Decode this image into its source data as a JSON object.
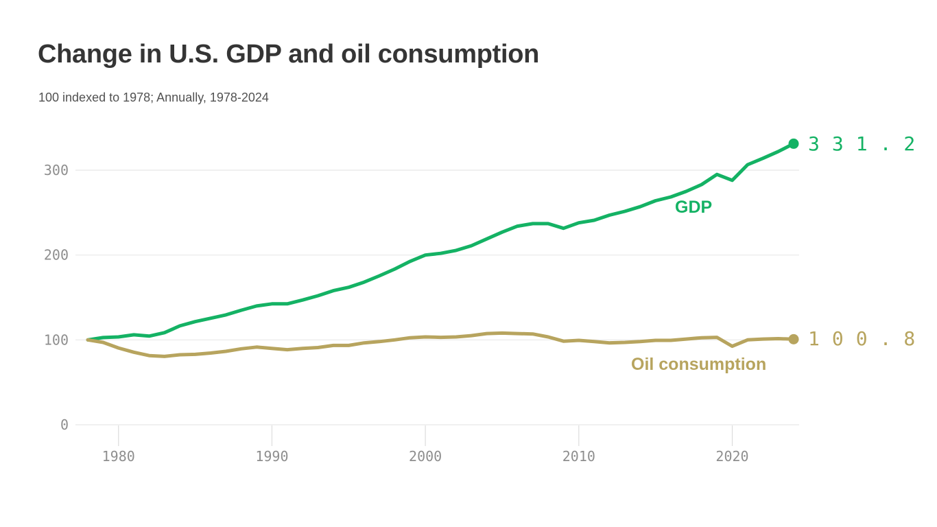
{
  "header": {
    "title": "Change in U.S. GDP and oil consumption",
    "subtitle": "100 indexed to 1978; Annually, 1978-2024"
  },
  "chart_data": {
    "type": "line",
    "title": "Change in U.S. GDP and oil consumption",
    "subtitle": "100 indexed to 1978; Annually, 1978-2024",
    "xlim": [
      1978,
      2024
    ],
    "ylim": [
      0,
      360
    ],
    "grid": "horizontal-gridlines",
    "legend": "inline-series-labels-and-end-values",
    "x": [
      1978,
      1979,
      1980,
      1981,
      1982,
      1983,
      1984,
      1985,
      1986,
      1987,
      1988,
      1989,
      1990,
      1991,
      1992,
      1993,
      1994,
      1995,
      1996,
      1997,
      1998,
      1999,
      2000,
      2001,
      2002,
      2003,
      2004,
      2005,
      2006,
      2007,
      2008,
      2009,
      2010,
      2011,
      2012,
      2013,
      2014,
      2015,
      2016,
      2017,
      2018,
      2019,
      2020,
      2021,
      2022,
      2023,
      2024
    ],
    "x_ticks": [
      1980,
      1990,
      2000,
      2010,
      2020
    ],
    "x_tick_labels": [
      "1980",
      "1990",
      "2000",
      "2010",
      "2020"
    ],
    "y_ticks": [
      0,
      100,
      200,
      300
    ],
    "y_tick_labels": [
      "0",
      "100",
      "200",
      "300"
    ],
    "series": [
      {
        "name": "GDP",
        "label": "GDP",
        "color": "#14b264",
        "end_label": "331.2",
        "end_value": 331.2,
        "values": [
          100,
          102.8,
          103.5,
          106,
          104.5,
          108.5,
          116.5,
          121.5,
          125.5,
          129.5,
          135,
          140,
          142.5,
          142.5,
          147,
          152,
          158,
          162,
          168,
          175.5,
          183.5,
          192.5,
          200,
          202,
          205.5,
          211,
          219,
          227,
          234,
          237,
          237,
          231.5,
          238,
          241,
          247,
          251.5,
          257,
          264,
          268.5,
          275,
          283,
          295,
          288,
          306.5,
          314,
          322,
          331.2
        ]
      },
      {
        "name": "Oil consumption",
        "label": "Oil consumption",
        "color": "#b7a45e",
        "end_label": "100.8",
        "end_value": 100.8,
        "values": [
          100,
          97,
          90.5,
          85.5,
          81.5,
          80.5,
          82.5,
          83,
          84.5,
          86.5,
          89.5,
          91.5,
          90,
          88.5,
          90,
          91,
          93.5,
          93.5,
          96.5,
          98,
          100,
          102.5,
          103.5,
          103,
          103.5,
          105,
          107.5,
          108,
          107.5,
          107,
          103.5,
          98.5,
          99.5,
          98,
          96.5,
          97,
          98,
          99.5,
          99.5,
          101,
          102.5,
          103,
          92.5,
          100,
          101,
          101.5,
          100.8
        ]
      }
    ],
    "colors": {
      "gridline": "#e8e8e8",
      "tick": "#dcdcdc",
      "axis_label": "#8e8e8e",
      "title": "#353535",
      "subtitle": "#525252"
    }
  }
}
